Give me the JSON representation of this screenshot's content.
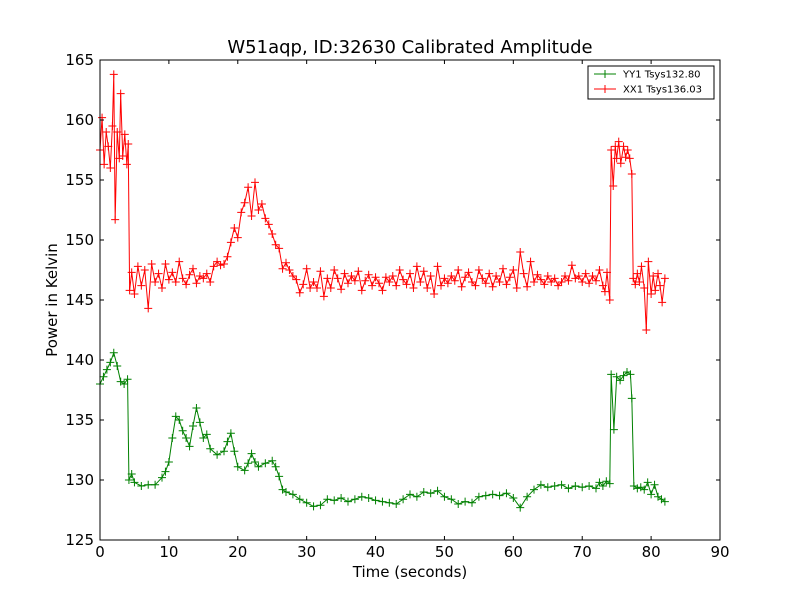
{
  "chart_data": {
    "type": "line",
    "title": "W51aqp, ID:32630 Calibrated Amplitude",
    "xlabel": "Time (seconds)",
    "ylabel": "Power in Kelvin",
    "xlim": [
      0,
      90
    ],
    "ylim": [
      125,
      165
    ],
    "xticks": [
      0,
      10,
      20,
      30,
      40,
      50,
      60,
      70,
      80,
      90
    ],
    "yticks": [
      125,
      130,
      135,
      140,
      145,
      150,
      155,
      160,
      165
    ],
    "grid": false,
    "legend_position": "top-right",
    "marker": "+",
    "series": [
      {
        "name": "YY1 Tsys132.80",
        "color": "#008000",
        "points": [
          [
            0.0,
            138.0
          ],
          [
            0.5,
            138.6
          ],
          [
            1.0,
            139.2
          ],
          [
            1.5,
            139.8
          ],
          [
            2.0,
            140.6
          ],
          [
            2.5,
            139.5
          ],
          [
            3.0,
            138.2
          ],
          [
            3.5,
            138.0
          ],
          [
            4.0,
            138.4
          ],
          [
            4.2,
            130.0
          ],
          [
            4.6,
            130.5
          ],
          [
            5.0,
            129.8
          ],
          [
            6.0,
            129.5
          ],
          [
            7.0,
            129.6
          ],
          [
            8.0,
            129.6
          ],
          [
            9.0,
            130.2
          ],
          [
            9.5,
            130.7
          ],
          [
            10.0,
            131.5
          ],
          [
            10.5,
            133.5
          ],
          [
            11.0,
            135.3
          ],
          [
            11.5,
            135.0
          ],
          [
            12.0,
            134.1
          ],
          [
            12.5,
            133.5
          ],
          [
            13.0,
            132.8
          ],
          [
            13.5,
            134.5
          ],
          [
            14.0,
            136.0
          ],
          [
            14.5,
            134.8
          ],
          [
            15.0,
            133.5
          ],
          [
            15.5,
            133.8
          ],
          [
            16.0,
            132.6
          ],
          [
            17.0,
            132.1
          ],
          [
            18.0,
            132.4
          ],
          [
            18.5,
            133.2
          ],
          [
            19.0,
            133.9
          ],
          [
            19.5,
            132.4
          ],
          [
            20.0,
            131.1
          ],
          [
            21.0,
            130.8
          ],
          [
            21.5,
            131.4
          ],
          [
            22.0,
            132.2
          ],
          [
            22.5,
            131.5
          ],
          [
            23.0,
            131.1
          ],
          [
            24.0,
            131.4
          ],
          [
            25.0,
            131.6
          ],
          [
            25.5,
            131.1
          ],
          [
            26.0,
            130.3
          ],
          [
            26.5,
            129.2
          ],
          [
            27.0,
            129.0
          ],
          [
            28.0,
            128.8
          ],
          [
            29.0,
            128.4
          ],
          [
            30.0,
            128.1
          ],
          [
            31.0,
            127.8
          ],
          [
            32.0,
            127.9
          ],
          [
            33.0,
            128.4
          ],
          [
            34.0,
            128.3
          ],
          [
            35.0,
            128.5
          ],
          [
            36.0,
            128.2
          ],
          [
            37.0,
            128.4
          ],
          [
            38.0,
            128.6
          ],
          [
            39.0,
            128.5
          ],
          [
            40.0,
            128.3
          ],
          [
            41.0,
            128.2
          ],
          [
            42.0,
            128.1
          ],
          [
            43.0,
            128.0
          ],
          [
            44.0,
            128.4
          ],
          [
            45.0,
            128.8
          ],
          [
            46.0,
            128.6
          ],
          [
            47.0,
            129.0
          ],
          [
            48.0,
            128.9
          ],
          [
            49.0,
            129.1
          ],
          [
            50.0,
            128.6
          ],
          [
            51.0,
            128.4
          ],
          [
            52.0,
            128.0
          ],
          [
            53.0,
            128.2
          ],
          [
            54.0,
            128.1
          ],
          [
            55.0,
            128.6
          ],
          [
            56.0,
            128.7
          ],
          [
            57.0,
            128.8
          ],
          [
            58.0,
            128.7
          ],
          [
            59.0,
            128.9
          ],
          [
            60.0,
            128.5
          ],
          [
            61.0,
            127.7
          ],
          [
            62.0,
            128.6
          ],
          [
            63.0,
            129.2
          ],
          [
            64.0,
            129.6
          ],
          [
            65.0,
            129.4
          ],
          [
            66.0,
            129.5
          ],
          [
            67.0,
            129.6
          ],
          [
            68.0,
            129.3
          ],
          [
            69.0,
            129.5
          ],
          [
            70.0,
            129.4
          ],
          [
            71.0,
            129.5
          ],
          [
            72.0,
            129.3
          ],
          [
            72.5,
            129.8
          ],
          [
            73.0,
            129.5
          ],
          [
            73.5,
            129.9
          ],
          [
            74.0,
            129.7
          ],
          [
            74.2,
            138.8
          ],
          [
            74.6,
            134.2
          ],
          [
            75.0,
            138.6
          ],
          [
            75.5,
            138.3
          ],
          [
            76.0,
            138.7
          ],
          [
            76.5,
            139.0
          ],
          [
            77.0,
            138.8
          ],
          [
            77.2,
            136.8
          ],
          [
            77.5,
            129.5
          ],
          [
            78.0,
            129.3
          ],
          [
            78.5,
            129.4
          ],
          [
            79.0,
            129.2
          ],
          [
            79.5,
            129.8
          ],
          [
            80.0,
            128.8
          ],
          [
            80.5,
            129.6
          ],
          [
            81.0,
            128.6
          ],
          [
            81.5,
            128.4
          ],
          [
            82.0,
            128.2
          ]
        ]
      },
      {
        "name": "XX1 Tsys136.03",
        "color": "#ff0000",
        "points": [
          [
            0.0,
            157.5
          ],
          [
            0.3,
            160.2
          ],
          [
            0.6,
            156.3
          ],
          [
            0.9,
            159.0
          ],
          [
            1.2,
            157.8
          ],
          [
            1.5,
            156.0
          ],
          [
            1.8,
            159.5
          ],
          [
            2.0,
            163.8
          ],
          [
            2.2,
            151.7
          ],
          [
            2.5,
            159.0
          ],
          [
            2.8,
            156.8
          ],
          [
            3.0,
            162.2
          ],
          [
            3.3,
            157.0
          ],
          [
            3.6,
            158.8
          ],
          [
            3.9,
            156.3
          ],
          [
            4.1,
            158.0
          ],
          [
            4.3,
            145.8
          ],
          [
            4.6,
            147.3
          ],
          [
            5.0,
            145.5
          ],
          [
            5.5,
            147.8
          ],
          [
            6.0,
            146.2
          ],
          [
            6.5,
            147.5
          ],
          [
            7.0,
            144.3
          ],
          [
            7.5,
            148.0
          ],
          [
            8.0,
            146.5
          ],
          [
            8.5,
            147.2
          ],
          [
            9.0,
            146.0
          ],
          [
            9.5,
            148.0
          ],
          [
            10.0,
            146.7
          ],
          [
            10.5,
            147.3
          ],
          [
            11.0,
            146.5
          ],
          [
            11.5,
            148.2
          ],
          [
            12.0,
            146.8
          ],
          [
            12.5,
            146.3
          ],
          [
            13.0,
            147.1
          ],
          [
            13.5,
            147.6
          ],
          [
            14.0,
            146.4
          ],
          [
            14.5,
            147.0
          ],
          [
            15.0,
            146.8
          ],
          [
            15.5,
            147.2
          ],
          [
            16.0,
            146.5
          ],
          [
            16.5,
            147.8
          ],
          [
            17.0,
            148.2
          ],
          [
            17.5,
            147.9
          ],
          [
            18.0,
            148.0
          ],
          [
            18.5,
            148.6
          ],
          [
            19.0,
            149.8
          ],
          [
            19.5,
            151.0
          ],
          [
            20.0,
            150.2
          ],
          [
            20.5,
            152.3
          ],
          [
            21.0,
            153.1
          ],
          [
            21.5,
            154.4
          ],
          [
            22.0,
            152.0
          ],
          [
            22.5,
            154.8
          ],
          [
            23.0,
            152.5
          ],
          [
            23.5,
            153.0
          ],
          [
            24.0,
            151.8
          ],
          [
            24.5,
            151.3
          ],
          [
            25.0,
            150.5
          ],
          [
            25.5,
            149.6
          ],
          [
            26.0,
            149.3
          ],
          [
            26.5,
            147.6
          ],
          [
            27.0,
            148.1
          ],
          [
            27.5,
            147.5
          ],
          [
            28.0,
            147.0
          ],
          [
            28.5,
            146.7
          ],
          [
            29.0,
            145.6
          ],
          [
            29.5,
            146.3
          ],
          [
            30.0,
            147.6
          ],
          [
            30.5,
            146.0
          ],
          [
            31.0,
            146.5
          ],
          [
            31.5,
            146.0
          ],
          [
            32.0,
            147.4
          ],
          [
            32.5,
            145.3
          ],
          [
            33.0,
            146.8
          ],
          [
            33.5,
            146.0
          ],
          [
            34.0,
            147.5
          ],
          [
            34.5,
            146.8
          ],
          [
            35.0,
            145.9
          ],
          [
            35.5,
            147.2
          ],
          [
            36.0,
            146.4
          ],
          [
            36.5,
            147.0
          ],
          [
            37.0,
            146.6
          ],
          [
            37.5,
            147.4
          ],
          [
            38.0,
            145.8
          ],
          [
            38.5,
            146.6
          ],
          [
            39.0,
            147.1
          ],
          [
            39.5,
            146.2
          ],
          [
            40.0,
            146.9
          ],
          [
            40.5,
            146.4
          ],
          [
            41.0,
            145.8
          ],
          [
            41.5,
            146.9
          ],
          [
            42.0,
            146.5
          ],
          [
            42.5,
            147.0
          ],
          [
            43.0,
            146.2
          ],
          [
            43.5,
            147.5
          ],
          [
            44.0,
            146.7
          ],
          [
            44.5,
            146.3
          ],
          [
            45.0,
            147.2
          ],
          [
            45.5,
            146.0
          ],
          [
            46.0,
            147.8
          ],
          [
            46.5,
            146.5
          ],
          [
            47.0,
            147.4
          ],
          [
            47.5,
            146.0
          ],
          [
            48.0,
            147.0
          ],
          [
            48.5,
            145.5
          ],
          [
            49.0,
            147.8
          ],
          [
            49.5,
            146.2
          ],
          [
            50.0,
            146.8
          ],
          [
            50.5,
            146.4
          ],
          [
            51.0,
            147.0
          ],
          [
            51.5,
            146.6
          ],
          [
            52.0,
            147.5
          ],
          [
            52.5,
            146.1
          ],
          [
            53.0,
            146.9
          ],
          [
            53.5,
            147.3
          ],
          [
            54.0,
            146.5
          ],
          [
            54.5,
            146.2
          ],
          [
            55.0,
            147.5
          ],
          [
            55.5,
            146.8
          ],
          [
            56.0,
            146.4
          ],
          [
            56.5,
            147.2
          ],
          [
            57.0,
            146.1
          ],
          [
            57.5,
            147.0
          ],
          [
            58.0,
            146.5
          ],
          [
            58.5,
            147.6
          ],
          [
            59.0,
            146.3
          ],
          [
            59.5,
            146.9
          ],
          [
            60.0,
            147.5
          ],
          [
            60.5,
            146.0
          ],
          [
            61.0,
            149.0
          ],
          [
            61.5,
            147.2
          ],
          [
            62.0,
            146.1
          ],
          [
            62.5,
            148.2
          ],
          [
            63.0,
            146.5
          ],
          [
            63.5,
            147.1
          ],
          [
            64.0,
            146.7
          ],
          [
            64.5,
            146.3
          ],
          [
            65.0,
            147.0
          ],
          [
            65.5,
            146.5
          ],
          [
            66.0,
            146.8
          ],
          [
            66.5,
            146.2
          ],
          [
            67.0,
            146.5
          ],
          [
            67.5,
            147.0
          ],
          [
            68.0,
            146.6
          ],
          [
            68.5,
            147.9
          ],
          [
            69.0,
            146.8
          ],
          [
            69.5,
            147.0
          ],
          [
            70.0,
            146.5
          ],
          [
            70.5,
            147.2
          ],
          [
            71.0,
            146.4
          ],
          [
            71.5,
            147.0
          ],
          [
            72.0,
            146.6
          ],
          [
            72.5,
            147.5
          ],
          [
            73.0,
            146.2
          ],
          [
            73.3,
            145.7
          ],
          [
            73.6,
            147.3
          ],
          [
            74.0,
            145.0
          ],
          [
            74.2,
            157.5
          ],
          [
            74.5,
            154.5
          ],
          [
            74.8,
            157.8
          ],
          [
            75.0,
            156.8
          ],
          [
            75.3,
            158.2
          ],
          [
            75.6,
            156.4
          ],
          [
            76.0,
            157.8
          ],
          [
            76.3,
            156.9
          ],
          [
            76.6,
            157.5
          ],
          [
            76.9,
            156.8
          ],
          [
            77.2,
            155.5
          ],
          [
            77.4,
            146.8
          ],
          [
            77.7,
            146.3
          ],
          [
            78.0,
            147.2
          ],
          [
            78.3,
            146.5
          ],
          [
            78.6,
            147.8
          ],
          [
            79.0,
            146.0
          ],
          [
            79.3,
            142.5
          ],
          [
            79.6,
            148.2
          ],
          [
            80.0,
            145.5
          ],
          [
            80.3,
            147.0
          ],
          [
            80.6,
            145.8
          ],
          [
            81.0,
            147.2
          ],
          [
            81.3,
            146.2
          ],
          [
            81.6,
            144.8
          ],
          [
            82.0,
            146.8
          ]
        ]
      }
    ]
  }
}
